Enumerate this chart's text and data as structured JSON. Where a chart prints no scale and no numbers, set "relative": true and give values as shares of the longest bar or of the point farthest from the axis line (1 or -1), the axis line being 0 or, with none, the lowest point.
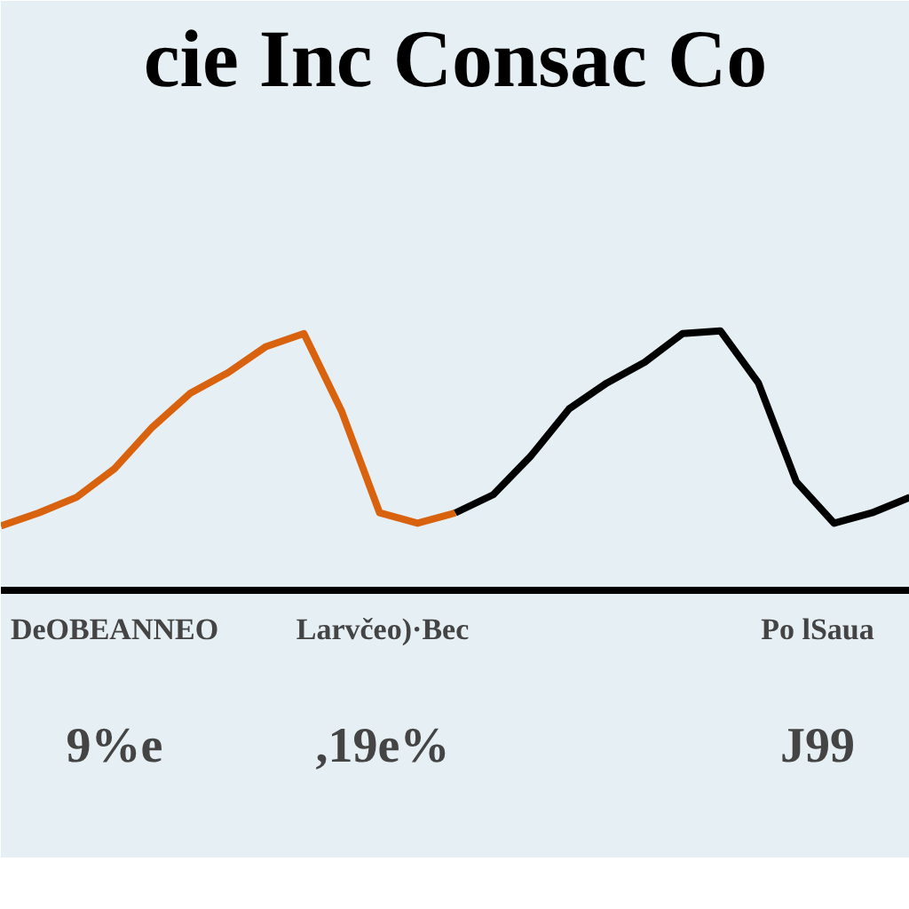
{
  "chart_data": {
    "type": "line",
    "title": "cie Inc Consac Co",
    "relative": true,
    "grid": false,
    "categories": [
      null,
      null,
      null,
      null,
      null,
      null,
      null,
      null,
      null,
      null,
      null,
      null,
      null,
      null,
      null,
      null,
      null,
      null,
      null,
      null,
      null,
      null,
      null,
      null,
      null
    ],
    "series": [
      {
        "color": "#d9620f",
        "values": [
          0.25,
          0.3,
          0.36,
          0.47,
          0.63,
          0.76,
          0.84,
          0.94,
          0.99,
          0.69,
          0.3,
          0.26,
          0.3,
          null,
          null,
          null,
          null,
          null,
          null,
          null,
          null,
          null,
          null,
          null,
          null
        ]
      },
      {
        "color": "#000000",
        "values": [
          null,
          null,
          null,
          null,
          null,
          null,
          null,
          null,
          null,
          null,
          null,
          null,
          0.3,
          0.37,
          0.52,
          0.7,
          0.8,
          0.88,
          0.99,
          1.0,
          0.8,
          0.42,
          0.26,
          0.3,
          0.36
        ]
      }
    ],
    "annotations": [
      "DeOBEANNEO",
      "Larvčeo)·Bec",
      "Po lSaua",
      "9%e",
      ",19e%",
      "J99"
    ]
  }
}
